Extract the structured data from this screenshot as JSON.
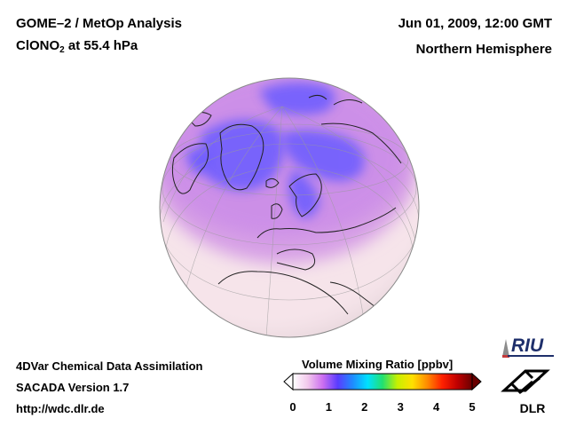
{
  "header": {
    "title_line1": "GOME–2 / MetOp Analysis",
    "species_prefix": "ClONO",
    "species_sub": "2",
    "species_suffix": " at 55.4 hPa",
    "datetime": "Jun 01, 2009, 12:00 GMT",
    "region": "Northern Hemisphere"
  },
  "footer": {
    "line1": "4DVar Chemical Data Assimilation",
    "line2": "SACADA Version 1.7",
    "line3": "http://wdc.dlr.de"
  },
  "colorbar": {
    "label": "Volume Mixing Ratio [ppbv]",
    "min": 0,
    "max": 5,
    "ticks": [
      "0",
      "1",
      "2",
      "3",
      "4",
      "5"
    ],
    "colors": [
      "#ffffff",
      "#f2c8ec",
      "#cc6ff0",
      "#5a3cff",
      "#1f8bff",
      "#00e0ff",
      "#22e070",
      "#c8f000",
      "#ffe000",
      "#ff8a00",
      "#ff2000",
      "#c00000",
      "#6a0000"
    ]
  },
  "map": {
    "projection": "orthographic",
    "center_lat": 60,
    "center_lon": 0,
    "high_region_color": "#6a5cff",
    "mid_region_color": "#c98ae8",
    "low_region_color": "#f6e4ea"
  },
  "logos": {
    "riu": "RIU",
    "dlr": "DLR"
  }
}
